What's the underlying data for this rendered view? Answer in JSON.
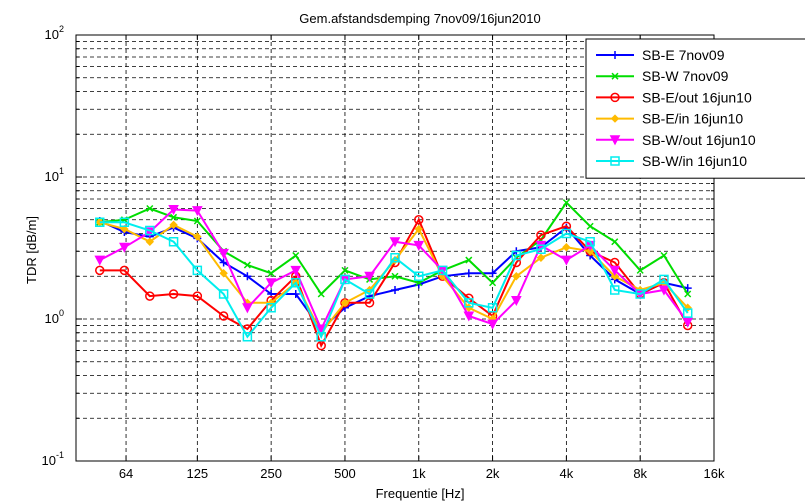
{
  "chart_data": {
    "type": "line",
    "title": "Gem.afstandsdemping 7nov09/16jun2010",
    "xlabel": "Frequentie [Hz]",
    "ylabel": "TDR [dB/m]",
    "x_scale": "log",
    "y_scale": "log",
    "xlim": [
      40,
      16000
    ],
    "ylim": [
      0.1,
      100
    ],
    "grid": true,
    "legend_position": "top-right",
    "x_ticks": [
      {
        "value": 64,
        "label": "64"
      },
      {
        "value": 125,
        "label": "125"
      },
      {
        "value": 250,
        "label": "250"
      },
      {
        "value": 500,
        "label": "500"
      },
      {
        "value": 1000,
        "label": "1k"
      },
      {
        "value": 2000,
        "label": "2k"
      },
      {
        "value": 4000,
        "label": "4k"
      },
      {
        "value": 8000,
        "label": "8k"
      },
      {
        "value": 16000,
        "label": "16k"
      }
    ],
    "y_ticks": [
      {
        "value": 0.1,
        "base": "10",
        "exp": "-1"
      },
      {
        "value": 1,
        "base": "10",
        "exp": "0"
      },
      {
        "value": 10,
        "base": "10",
        "exp": "1"
      },
      {
        "value": 100,
        "base": "10",
        "exp": "2"
      }
    ],
    "x": [
      50,
      63,
      80,
      100,
      125,
      160,
      200,
      250,
      315,
      400,
      500,
      630,
      800,
      1000,
      1250,
      1600,
      2000,
      2500,
      3150,
      4000,
      5000,
      6300,
      8000,
      10000,
      12500
    ],
    "series": [
      {
        "name": "SB-E 7nov09",
        "color": "#0000ff",
        "marker": "plus",
        "values": [
          4.9,
          4.1,
          3.8,
          4.4,
          3.7,
          2.5,
          2.0,
          1.5,
          1.5,
          0.85,
          1.2,
          1.45,
          1.6,
          1.75,
          2.0,
          2.1,
          2.1,
          3.0,
          3.2,
          4.4,
          2.8,
          1.9,
          1.5,
          1.8,
          1.65
        ]
      },
      {
        "name": "SB-W 7nov09",
        "color": "#00dd00",
        "marker": "x",
        "values": [
          4.8,
          5.0,
          6.0,
          5.2,
          4.9,
          3.0,
          2.4,
          2.1,
          2.8,
          1.5,
          2.2,
          1.9,
          2.0,
          1.8,
          2.2,
          2.6,
          1.8,
          2.7,
          3.6,
          6.6,
          4.5,
          3.5,
          2.2,
          2.8,
          1.5
        ]
      },
      {
        "name": "SB-E/out 16jun10",
        "color": "#ff0000",
        "marker": "circle",
        "values": [
          2.2,
          2.2,
          1.45,
          1.5,
          1.45,
          1.05,
          0.85,
          1.35,
          2.0,
          0.65,
          1.3,
          1.3,
          2.5,
          5.0,
          2.0,
          1.4,
          1.05,
          2.5,
          3.9,
          4.5,
          3.0,
          2.5,
          1.5,
          1.8,
          0.9
        ]
      },
      {
        "name": "SB-E/in 16jun10",
        "color": "#ffbb00",
        "marker": "diamond",
        "values": [
          4.8,
          4.3,
          3.5,
          4.6,
          3.8,
          2.1,
          1.3,
          1.3,
          1.8,
          0.8,
          1.3,
          1.6,
          2.6,
          4.3,
          2.0,
          1.2,
          1.0,
          2.0,
          2.7,
          3.2,
          3.0,
          2.0,
          1.6,
          1.8,
          1.2
        ]
      },
      {
        "name": "SB-W/out 16jun10",
        "color": "#ff00ff",
        "marker": "triangle-down",
        "values": [
          2.6,
          3.2,
          4.1,
          5.9,
          5.8,
          2.9,
          1.2,
          1.8,
          2.2,
          0.85,
          1.9,
          2.0,
          3.5,
          3.3,
          2.2,
          1.05,
          0.92,
          1.35,
          3.3,
          2.6,
          3.3,
          2.2,
          1.5,
          1.6,
          0.95
        ]
      },
      {
        "name": "SB-W/in 16jun10",
        "color": "#00eeee",
        "marker": "square",
        "values": [
          4.8,
          4.8,
          4.2,
          3.5,
          2.2,
          1.5,
          0.75,
          1.2,
          1.8,
          0.75,
          1.9,
          1.5,
          2.7,
          2.0,
          2.2,
          1.3,
          1.2,
          2.8,
          3.1,
          4.0,
          3.5,
          1.6,
          1.5,
          1.9,
          1.1
        ]
      }
    ]
  }
}
